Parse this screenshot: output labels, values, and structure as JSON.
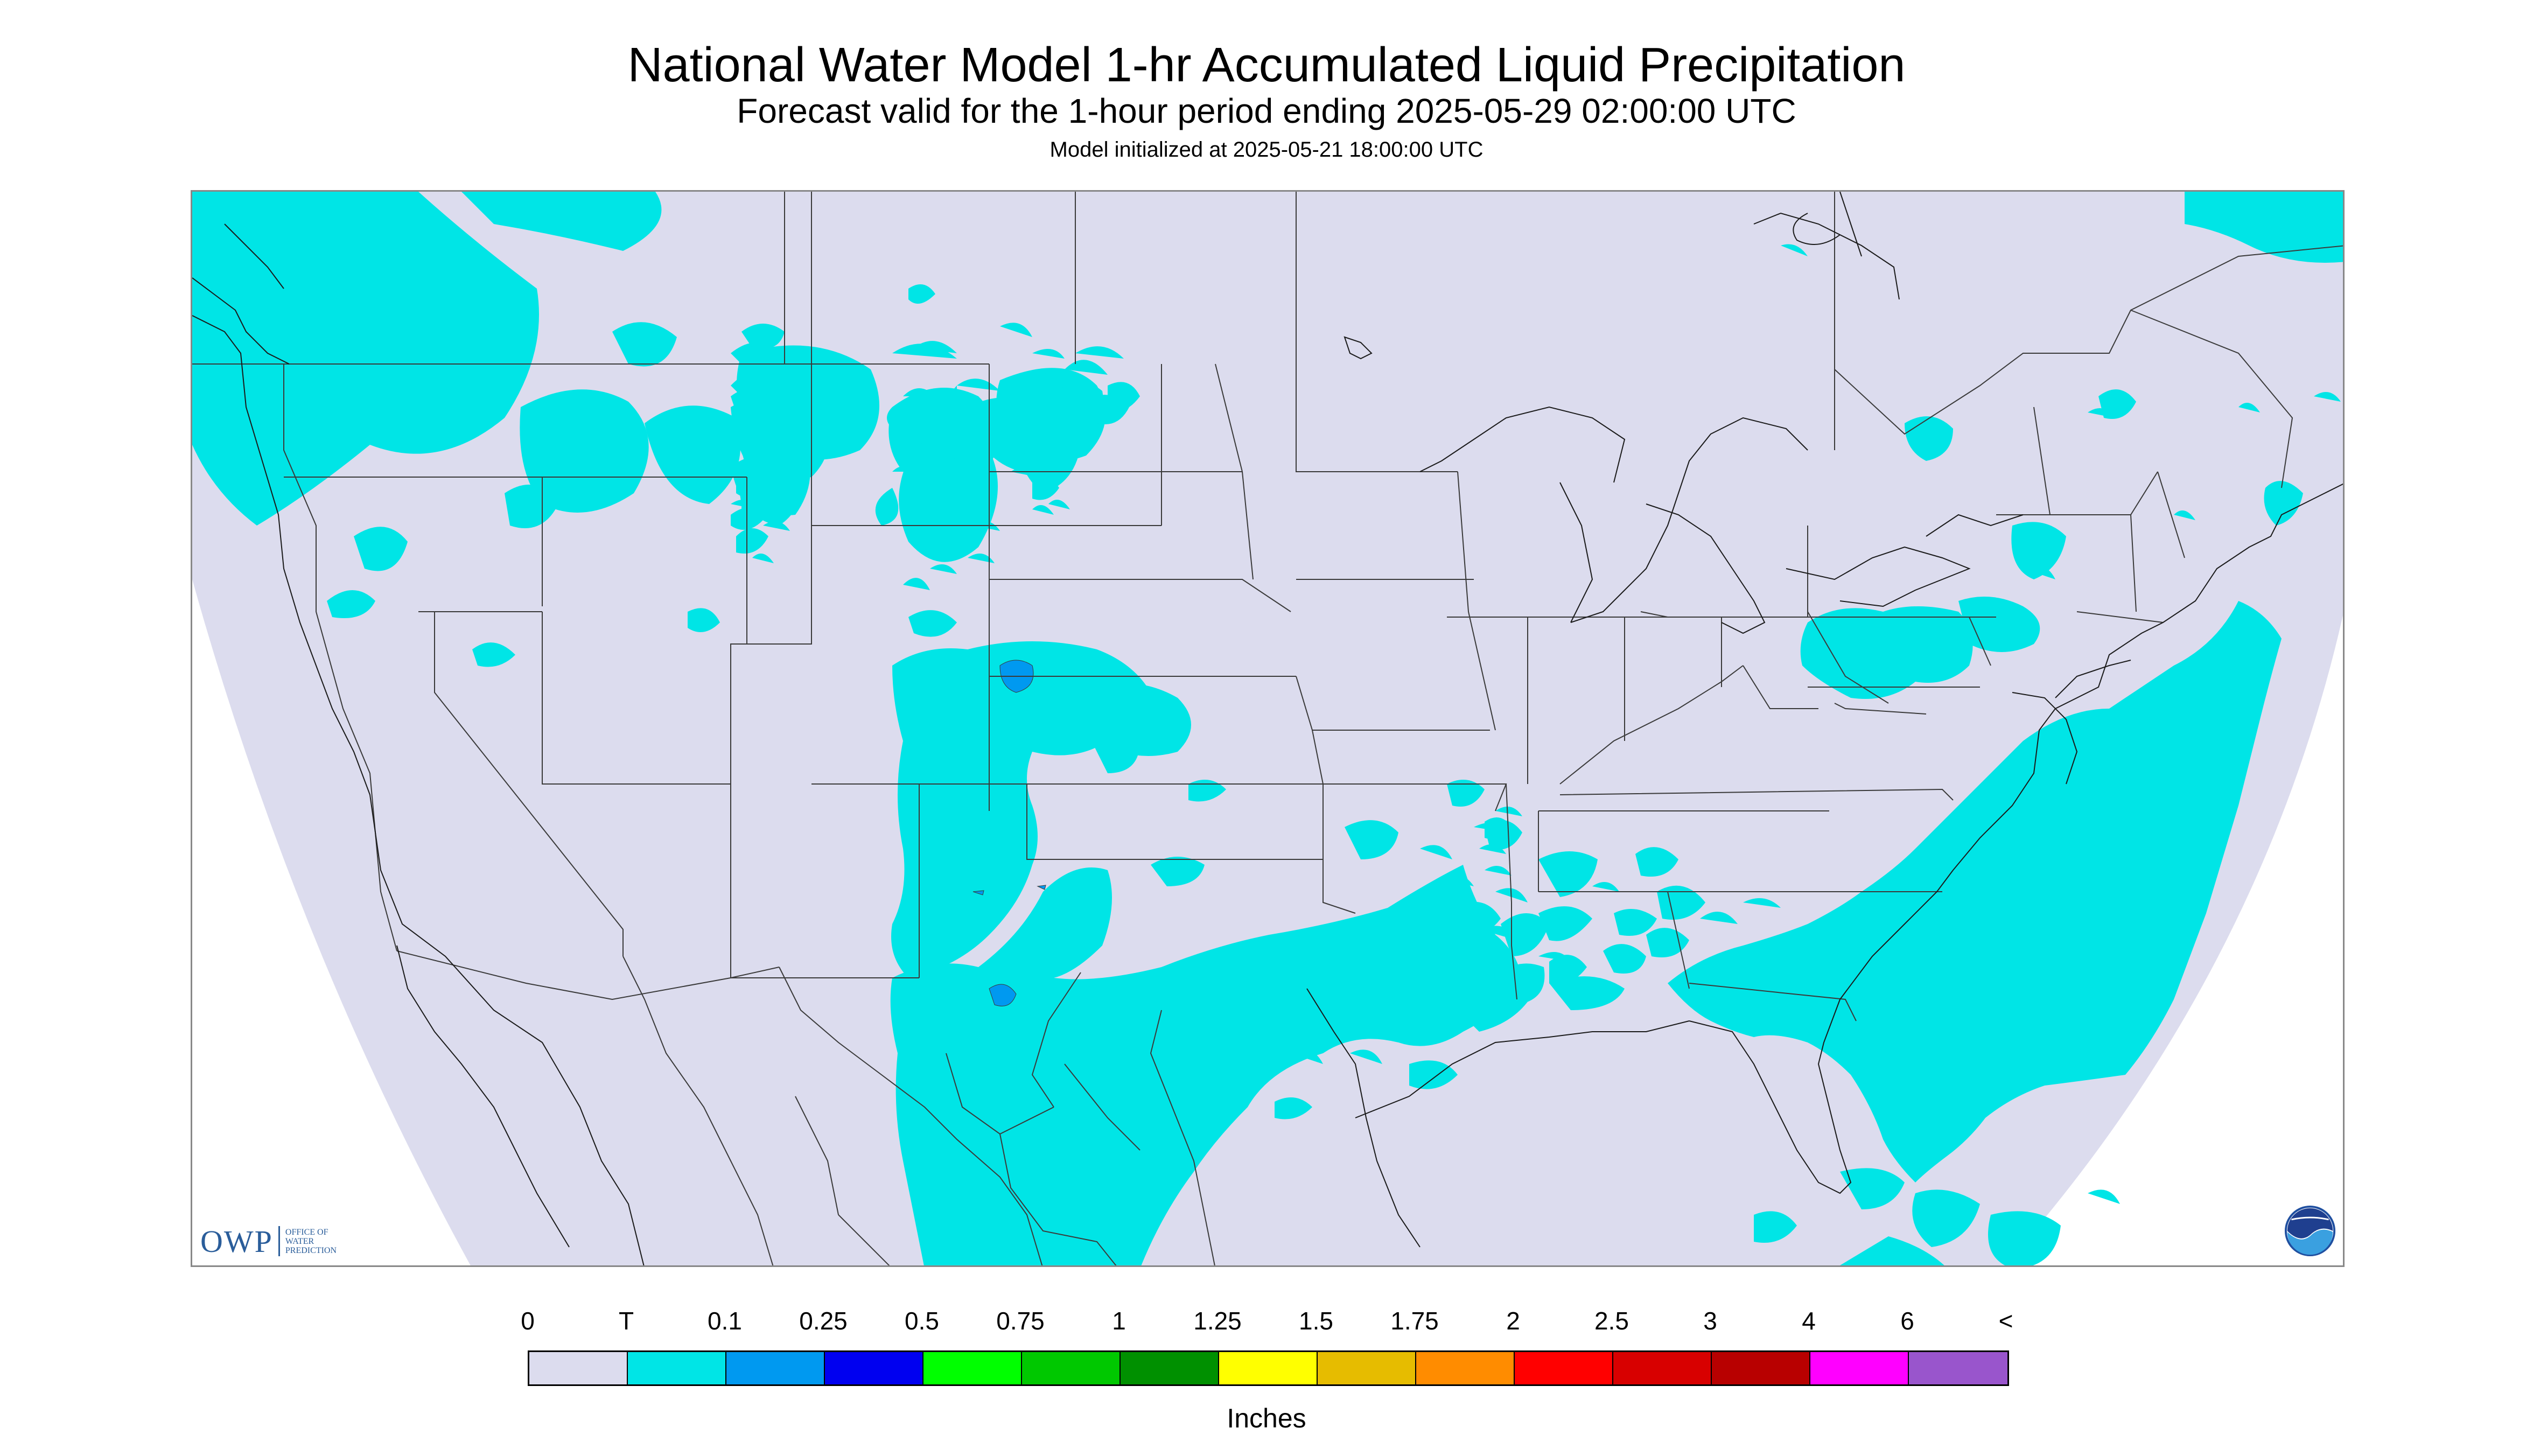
{
  "title": "National Water Model 1-hr Accumulated Liquid Precipitation",
  "subtitle": "Forecast valid for the 1-hour period ending 2025-05-29 02:00:00 UTC",
  "init_line": "Model initialized at 2025-05-21 18:00:00 UTC",
  "branding": {
    "owp_main": "OWP",
    "owp_lines": [
      "OFFICE OF",
      "WATER",
      "PREDICTION"
    ],
    "noaa_logo": "NOAA"
  },
  "legend": {
    "labels": [
      "0",
      "T",
      "0.1",
      "0.25",
      "0.5",
      "0.75",
      "1",
      "1.25",
      "1.5",
      "1.75",
      "2",
      "2.5",
      "3",
      "4",
      "6",
      "<"
    ],
    "colors": [
      "#dcdcee",
      "#00e5e6",
      "#0099f0",
      "#0000f0",
      "#00ff00",
      "#00c800",
      "#009000",
      "#ffff00",
      "#e6bc00",
      "#ff8c00",
      "#ff0000",
      "#d80000",
      "#b80000",
      "#ff00ff",
      "#9955cc"
    ],
    "units": "Inches"
  },
  "colors": {
    "no_data": "#ffffff",
    "zero_precip": "#dcdcee",
    "trace": "#00e5e6",
    "light": "#0099f0",
    "boundary": "#3a3a3a"
  }
}
